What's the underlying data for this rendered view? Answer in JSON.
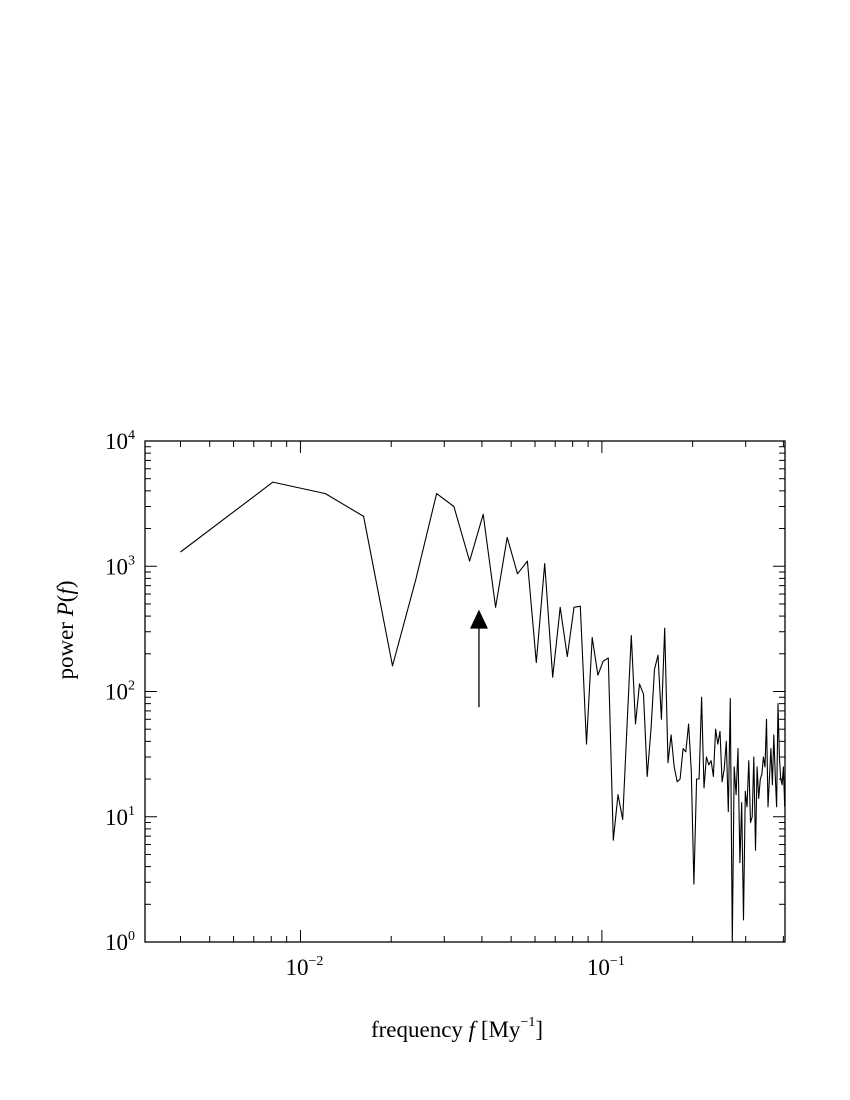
{
  "chart_data": {
    "type": "line",
    "title": "",
    "xlabel": {
      "prefix": "frequency ",
      "variable": "f",
      "unit_open": "  [My",
      "unit_exp": "−1",
      "unit_close": "]"
    },
    "ylabel": {
      "prefix": "power ",
      "variable": "P",
      "open": "(",
      "arg": "f",
      "close": ")"
    },
    "x_scale": "log",
    "y_scale": "log",
    "xlim": [
      0.00305,
      0.405
    ],
    "ylim": [
      1,
      10000
    ],
    "x_ticks": [
      {
        "value": 0.01,
        "base": "10",
        "exp": "−2"
      },
      {
        "value": 0.1,
        "base": "10",
        "exp": "−1"
      }
    ],
    "y_ticks": [
      {
        "value": 1,
        "base": "10",
        "exp": "0"
      },
      {
        "value": 10,
        "base": "10",
        "exp": "1"
      },
      {
        "value": 100,
        "base": "10",
        "exp": "2"
      },
      {
        "value": 1000,
        "base": "10",
        "exp": "3"
      },
      {
        "value": 10000,
        "base": "10",
        "exp": "4"
      }
    ],
    "grid": false,
    "legend": "none",
    "annotation": {
      "type": "arrow",
      "x": 0.0391,
      "y_start": 75,
      "y_end": 450
    },
    "series": [
      {
        "x": [
          0.004,
          0.0081,
          0.0121,
          0.0162,
          0.0202,
          0.0242,
          0.0283,
          0.0323,
          0.0364,
          0.0404,
          0.0444,
          0.0485,
          0.0525,
          0.0566,
          0.0606,
          0.0646,
          0.0687,
          0.0727,
          0.0768,
          0.0808,
          0.0848,
          0.0889,
          0.0929,
          0.097,
          0.101,
          0.105,
          0.1091,
          0.1131,
          0.1172,
          0.1212,
          0.1252,
          0.1293,
          0.1333,
          0.1374,
          0.1414,
          0.1455,
          0.1495,
          0.1535,
          0.1576,
          0.1616,
          0.1657,
          0.1697,
          0.1737,
          0.1778,
          0.1818,
          0.1859,
          0.1899,
          0.1939,
          0.198,
          0.202,
          0.2061,
          0.2101,
          0.2141,
          0.2182,
          0.2222,
          0.2263,
          0.2303,
          0.2343,
          0.2384,
          0.2424,
          0.2465,
          0.2505,
          0.2545,
          0.2586,
          0.2626,
          0.2667,
          0.2707,
          0.2747,
          0.2788,
          0.2828,
          0.2869,
          0.2909,
          0.2949,
          0.299,
          0.303,
          0.3071,
          0.3111,
          0.3152,
          0.3192,
          0.3232,
          0.3273,
          0.3313,
          0.3354,
          0.3394,
          0.3434,
          0.3475,
          0.3515,
          0.3556,
          0.3596,
          0.3636,
          0.3677,
          0.3717,
          0.3758,
          0.3798,
          0.3838,
          0.3879,
          0.3919,
          0.396,
          0.4,
          0.404
        ],
        "y": [
          1300,
          4700,
          3800,
          2500,
          160,
          800,
          3800,
          3000,
          1100,
          2600,
          470,
          1700,
          870,
          1100,
          170,
          1050,
          130,
          470,
          190,
          470,
          480,
          38,
          270,
          135,
          175,
          185,
          6.5,
          15,
          9.5,
          55,
          280,
          55,
          115,
          95,
          21,
          50,
          150,
          195,
          60,
          320,
          27,
          45,
          25,
          19,
          20,
          35,
          33,
          55,
          23,
          2.9,
          20,
          20,
          90,
          17,
          30,
          26,
          28,
          21,
          50,
          38,
          48,
          19,
          24,
          40,
          11,
          88,
          1.0,
          25,
          15,
          35,
          4.3,
          13,
          1.5,
          16,
          12,
          28,
          9,
          10,
          30,
          5.4,
          25,
          14,
          20,
          22,
          30,
          25,
          60,
          12,
          20,
          35,
          18,
          45,
          22,
          12,
          80,
          30,
          20,
          18,
          25,
          12
        ]
      }
    ]
  }
}
